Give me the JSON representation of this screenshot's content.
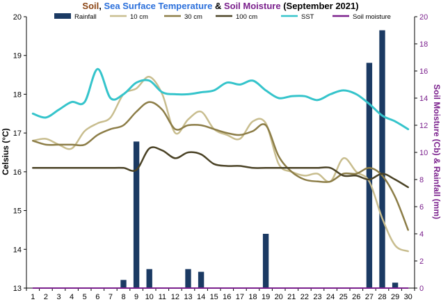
{
  "chart_data": {
    "type": "bar+line",
    "title_parts": [
      {
        "text": "Soil",
        "color": "#8b4513"
      },
      {
        "text": ", ",
        "color": "#000000"
      },
      {
        "text": "Sea Surface Temperature",
        "color": "#2a6fdb"
      },
      {
        "text": " & ",
        "color": "#000000"
      },
      {
        "text": "Soil Moisture",
        "color": "#7a1f8c"
      },
      {
        "text": " (September 2021)",
        "color": "#000000"
      }
    ],
    "ylabel_left": "Celsius (°C)",
    "ylabel_right": "Soil Moisture (Cb) & Rainfall (mm)",
    "ylim_left": [
      13,
      20
    ],
    "ylim_right": [
      0,
      20
    ],
    "x": [
      1,
      2,
      3,
      4,
      5,
      6,
      7,
      8,
      9,
      10,
      11,
      12,
      13,
      14,
      15,
      16,
      17,
      18,
      19,
      20,
      21,
      22,
      23,
      24,
      25,
      26,
      27,
      28,
      29,
      30
    ],
    "rainfall": {
      "name": "Rainfall",
      "axis": "right",
      "color": "#1b3a63",
      "values": [
        0,
        0,
        0,
        0,
        0,
        0,
        0,
        0.6,
        10.8,
        1.4,
        0,
        0,
        1.4,
        1.2,
        0,
        0,
        0,
        0,
        4.0,
        0,
        0,
        0,
        0,
        0,
        0,
        0,
        16.6,
        19.0,
        0.4,
        0
      ]
    },
    "series": [
      {
        "name": "10 cm",
        "axis": "left",
        "color": "#c8bd8e",
        "width": 2.5,
        "values": [
          16.8,
          16.85,
          16.7,
          16.6,
          17.05,
          17.25,
          17.4,
          18.0,
          18.15,
          18.45,
          18.0,
          17.0,
          17.35,
          17.55,
          17.1,
          16.95,
          16.85,
          17.3,
          17.25,
          16.2,
          16.0,
          15.9,
          15.95,
          15.75,
          16.35,
          16.0,
          15.75,
          14.8,
          14.1,
          13.95
        ]
      },
      {
        "name": "30 cm",
        "axis": "left",
        "color": "#8c7d47",
        "width": 2.5,
        "values": [
          16.8,
          16.7,
          16.7,
          16.7,
          16.7,
          16.95,
          17.1,
          17.2,
          17.55,
          17.8,
          17.6,
          17.1,
          17.2,
          17.2,
          17.1,
          17.0,
          16.95,
          17.05,
          17.2,
          16.4,
          16.0,
          15.8,
          15.75,
          15.75,
          15.95,
          15.95,
          16.1,
          15.9,
          15.35,
          14.5
        ]
      },
      {
        "name": "100 cm",
        "axis": "left",
        "color": "#4a4225",
        "width": 2.5,
        "values": [
          16.1,
          16.1,
          16.1,
          16.1,
          16.1,
          16.1,
          16.1,
          16.1,
          16.05,
          16.6,
          16.55,
          16.35,
          16.5,
          16.45,
          16.2,
          16.15,
          16.15,
          16.1,
          16.1,
          16.1,
          16.1,
          16.1,
          16.1,
          16.1,
          15.9,
          15.9,
          15.8,
          15.95,
          15.8,
          15.6
        ]
      },
      {
        "name": "SST",
        "axis": "left",
        "color": "#35c4cb",
        "width": 3,
        "values": [
          17.5,
          17.4,
          17.6,
          17.8,
          17.8,
          18.65,
          17.9,
          18.0,
          18.3,
          18.35,
          18.05,
          18.0,
          18.0,
          18.05,
          18.1,
          18.3,
          18.25,
          18.35,
          18.1,
          17.9,
          17.95,
          17.95,
          17.85,
          18.0,
          18.1,
          18.0,
          17.75,
          17.45,
          17.3,
          17.1
        ]
      },
      {
        "name": "Soil moisture",
        "axis": "right",
        "color": "#7a1f8c",
        "width": 2,
        "values": [
          0,
          0,
          0,
          0,
          0,
          0,
          0,
          0,
          0,
          0,
          0,
          0,
          0,
          0,
          0,
          0,
          0,
          0,
          0,
          0,
          0,
          0,
          0,
          0,
          0,
          0,
          0,
          0,
          0,
          0
        ]
      }
    ],
    "legend_position": "top",
    "grid": false
  }
}
